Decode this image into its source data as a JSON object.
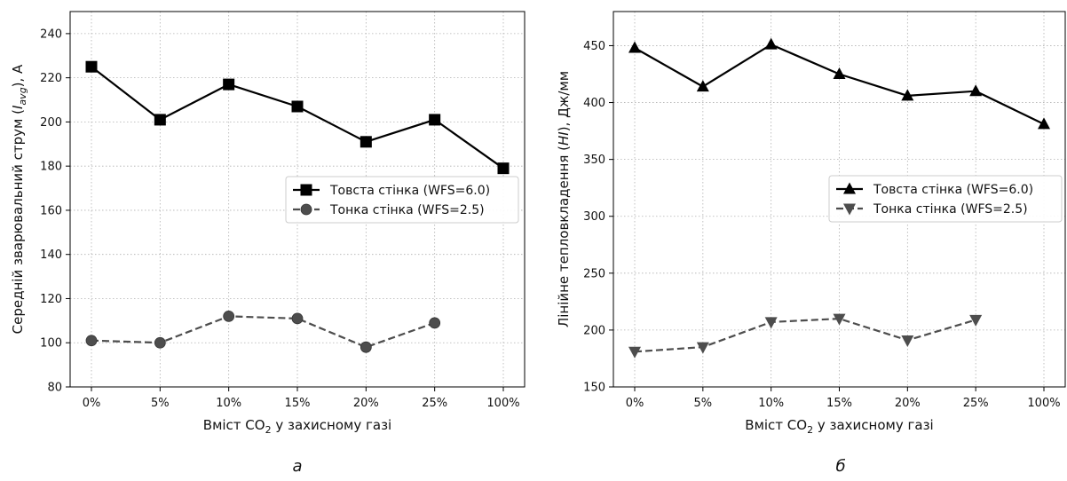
{
  "chart_data": [
    {
      "type": "line",
      "panel_label": "а",
      "categories": [
        "0%",
        "5%",
        "10%",
        "15%",
        "20%",
        "25%",
        "100%"
      ],
      "xlabel": {
        "prefix": "Вміст CO",
        "sub": "2",
        "suffix": " у захисному газі"
      },
      "ylabel": {
        "prefix": "Середній зварювальний струм (",
        "italic": "I",
        "sub": "avg",
        "suffix": "), А"
      },
      "ylim": [
        80,
        250
      ],
      "yticks": [
        80,
        100,
        120,
        140,
        160,
        180,
        200,
        220,
        240
      ],
      "grid": true,
      "legend_position": "center-right",
      "series": [
        {
          "name": "Товста стінка (WFS=6.0)",
          "marker": "square",
          "line": "solid",
          "color": "#000000",
          "values": [
            225,
            201,
            217,
            207,
            191,
            201,
            179
          ]
        },
        {
          "name": "Тонка стінка (WFS=2.5)",
          "marker": "circle",
          "line": "dashed",
          "color": "#4d4d4d",
          "values": [
            101,
            100,
            112,
            111,
            98,
            109,
            null
          ]
        }
      ]
    },
    {
      "type": "line",
      "panel_label": "б",
      "categories": [
        "0%",
        "5%",
        "10%",
        "15%",
        "20%",
        "25%",
        "100%"
      ],
      "xlabel": {
        "prefix": "Вміст CO",
        "sub": "2",
        "suffix": " у захисному газі"
      },
      "ylabel": {
        "prefix": "Лінійне тепловкладення (",
        "italic": "HI",
        "sub": "",
        "suffix": "), Дж/мм"
      },
      "ylim": [
        150,
        480
      ],
      "yticks": [
        150,
        200,
        250,
        300,
        350,
        400,
        450
      ],
      "grid": true,
      "legend_position": "center-right",
      "series": [
        {
          "name": "Товста стінка (WFS=6.0)",
          "marker": "triangle-up",
          "line": "solid",
          "color": "#000000",
          "values": [
            448,
            414,
            451,
            425,
            406,
            410,
            381
          ]
        },
        {
          "name": "Тонка стінка (WFS=2.5)",
          "marker": "triangle-down",
          "line": "dashed",
          "color": "#4d4d4d",
          "values": [
            181,
            185,
            207,
            210,
            191,
            209,
            null
          ]
        }
      ]
    }
  ]
}
